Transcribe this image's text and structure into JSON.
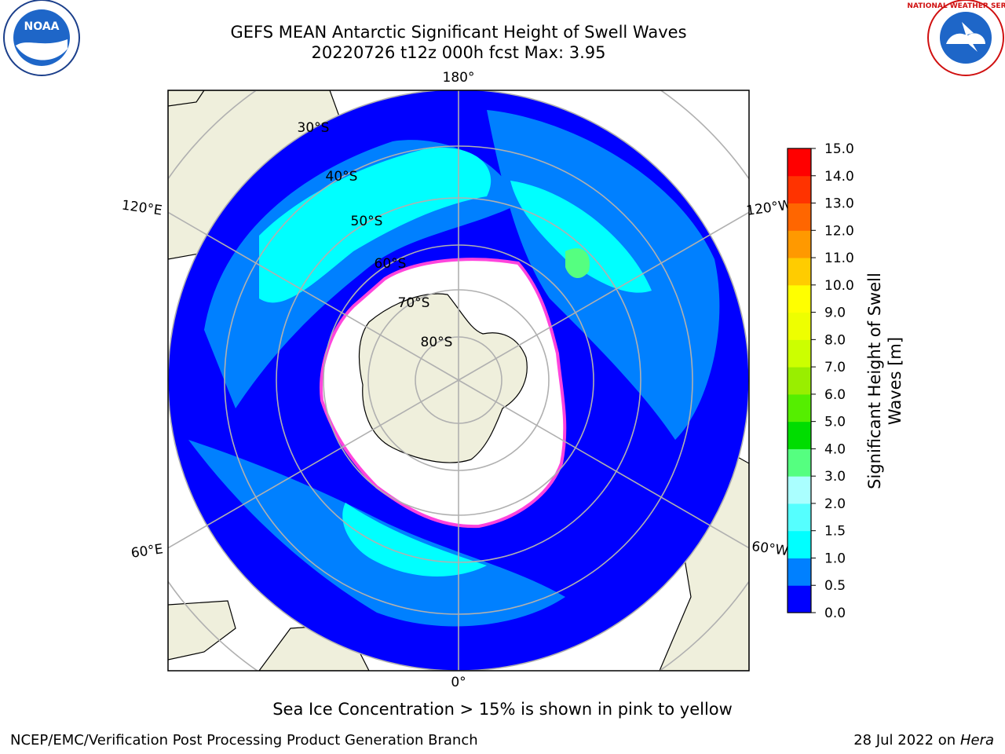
{
  "title": {
    "line1": "GEFS MEAN Antarctic Significant Height of Swell Waves",
    "line2": "20220726 t12z 000h fcst   Max: 3.95"
  },
  "note": "Sea Ice Concentration > 15% is shown in pink to yellow",
  "credit": "NCEP/EMC/Verification Post Processing Product Generation Branch",
  "date": "28 Jul 2022 on ",
  "machine": "Hera",
  "logos": {
    "left": "NOAA",
    "right": "NATIONAL WEATHER SERVICE"
  },
  "map": {
    "projection": "south-polar-stereographic",
    "lon_labels": [
      "180°",
      "120°E",
      "120°W",
      "60°E",
      "60°W",
      "0°"
    ],
    "lat_labels": [
      "30°S",
      "40°S",
      "50°S",
      "60°S",
      "70°S",
      "80°S"
    ]
  },
  "colorbar": {
    "label_line1": "Significant Height of Swell",
    "label_line2": "Waves [m]",
    "ticks": [
      "0.0",
      "0.5",
      "1.0",
      "1.5",
      "2.0",
      "3.0",
      "4.0",
      "5.0",
      "6.0",
      "7.0",
      "8.0",
      "9.0",
      "10.0",
      "11.0",
      "12.0",
      "13.0",
      "14.0",
      "15.0"
    ],
    "colors": [
      "#0000ff",
      "#0080ff",
      "#00ffff",
      "#55ffff",
      "#aaffff",
      "#55ff80",
      "#00dd00",
      "#55ee00",
      "#99ee00",
      "#ccff00",
      "#eeff00",
      "#ffff00",
      "#ffcc00",
      "#ff9900",
      "#ff6600",
      "#ff3300",
      "#ff0000"
    ]
  },
  "colors": {
    "land": "#efefdc",
    "ocean_low": "#0000ff",
    "ocean_mid": "#0080ff",
    "ocean_high": "#00ffff",
    "sea_ice_edge": "#ff44dd",
    "grid": "#b0b0b0"
  }
}
